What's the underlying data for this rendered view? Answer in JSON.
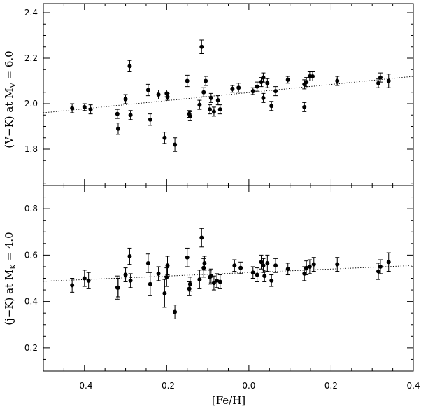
{
  "chart_data": [
    {
      "type": "scatter",
      "panel": "top",
      "title": "",
      "xlabel": "",
      "ylabel": {
        "main": "(V−K) at M",
        "sub": "V",
        "suffix": " = 6.0"
      },
      "xlim": [
        -0.5,
        0.4
      ],
      "ylim": [
        1.64,
        2.44
      ],
      "yticks": [
        1.8,
        2.0,
        2.2,
        2.4
      ],
      "ytick_labels": [
        "1.8",
        "2.0",
        "2.2",
        "2.4"
      ],
      "grid": false,
      "fit_line": {
        "x": [
          -0.5,
          0.4
        ],
        "y": [
          1.96,
          2.12
        ],
        "style": "dotted"
      },
      "points": [
        {
          "x": -0.43,
          "y": 1.98,
          "err": 0.02
        },
        {
          "x": -0.4,
          "y": 1.985,
          "err": 0.015
        },
        {
          "x": -0.385,
          "y": 1.975,
          "err": 0.02
        },
        {
          "x": -0.32,
          "y": 1.955,
          "err": 0.02
        },
        {
          "x": -0.318,
          "y": 1.89,
          "err": 0.025
        },
        {
          "x": -0.3,
          "y": 2.02,
          "err": 0.02
        },
        {
          "x": -0.29,
          "y": 2.165,
          "err": 0.025
        },
        {
          "x": -0.288,
          "y": 1.95,
          "err": 0.02
        },
        {
          "x": -0.245,
          "y": 2.06,
          "err": 0.025
        },
        {
          "x": -0.24,
          "y": 1.93,
          "err": 0.025
        },
        {
          "x": -0.22,
          "y": 2.04,
          "err": 0.02
        },
        {
          "x": -0.205,
          "y": 1.85,
          "err": 0.025
        },
        {
          "x": -0.2,
          "y": 2.045,
          "err": 0.015
        },
        {
          "x": -0.198,
          "y": 2.03,
          "err": 0.015
        },
        {
          "x": -0.18,
          "y": 1.82,
          "err": 0.03
        },
        {
          "x": -0.15,
          "y": 2.1,
          "err": 0.025
        },
        {
          "x": -0.145,
          "y": 1.955,
          "err": 0.015
        },
        {
          "x": -0.143,
          "y": 1.945,
          "err": 0.02
        },
        {
          "x": -0.12,
          "y": 1.995,
          "err": 0.02
        },
        {
          "x": -0.115,
          "y": 2.25,
          "err": 0.03
        },
        {
          "x": -0.11,
          "y": 2.05,
          "err": 0.02
        },
        {
          "x": -0.105,
          "y": 2.1,
          "err": 0.02
        },
        {
          "x": -0.095,
          "y": 1.975,
          "err": 0.02
        },
        {
          "x": -0.092,
          "y": 2.025,
          "err": 0.02
        },
        {
          "x": -0.085,
          "y": 1.965,
          "err": 0.02
        },
        {
          "x": -0.075,
          "y": 2.015,
          "err": 0.02
        },
        {
          "x": -0.07,
          "y": 1.975,
          "err": 0.02
        },
        {
          "x": -0.04,
          "y": 2.065,
          "err": 0.015
        },
        {
          "x": -0.025,
          "y": 2.07,
          "err": 0.02
        },
        {
          "x": 0.01,
          "y": 2.055,
          "err": 0.015
        },
        {
          "x": 0.02,
          "y": 2.075,
          "err": 0.02
        },
        {
          "x": 0.03,
          "y": 2.095,
          "err": 0.02
        },
        {
          "x": 0.035,
          "y": 2.025,
          "err": 0.02
        },
        {
          "x": 0.035,
          "y": 2.115,
          "err": 0.02
        },
        {
          "x": 0.045,
          "y": 2.09,
          "err": 0.02
        },
        {
          "x": 0.055,
          "y": 1.99,
          "err": 0.02
        },
        {
          "x": 0.065,
          "y": 2.055,
          "err": 0.02
        },
        {
          "x": 0.095,
          "y": 2.105,
          "err": 0.015
        },
        {
          "x": 0.135,
          "y": 2.085,
          "err": 0.02
        },
        {
          "x": 0.14,
          "y": 2.095,
          "err": 0.02
        },
        {
          "x": 0.148,
          "y": 2.12,
          "err": 0.02
        },
        {
          "x": 0.135,
          "y": 1.985,
          "err": 0.02
        },
        {
          "x": 0.155,
          "y": 2.12,
          "err": 0.02
        },
        {
          "x": 0.215,
          "y": 2.1,
          "err": 0.02
        },
        {
          "x": 0.315,
          "y": 2.09,
          "err": 0.02
        },
        {
          "x": 0.32,
          "y": 2.115,
          "err": 0.02
        },
        {
          "x": 0.34,
          "y": 2.1,
          "err": 0.03
        }
      ]
    },
    {
      "type": "scatter",
      "panel": "bottom",
      "title": "",
      "xlabel": "[Fe/H]",
      "ylabel": {
        "main": "(j−K) at M",
        "sub": "K",
        "suffix": " = 4.0"
      },
      "xlim": [
        -0.5,
        0.4
      ],
      "ylim": [
        0.1,
        0.9
      ],
      "xticks": [
        -0.4,
        -0.2,
        0.0,
        0.2,
        0.4
      ],
      "xtick_labels": [
        "-0.4",
        "-0.2",
        "0.0",
        "0.2",
        "0.4"
      ],
      "yticks": [
        0.2,
        0.4,
        0.6,
        0.8
      ],
      "ytick_labels": [
        "0.2",
        "0.4",
        "0.6",
        "0.8"
      ],
      "grid": false,
      "fit_line": {
        "x": [
          -0.5,
          0.4
        ],
        "y": [
          0.487,
          0.555
        ],
        "style": "dotted"
      },
      "points": [
        {
          "x": -0.43,
          "y": 0.47,
          "err": 0.03
        },
        {
          "x": -0.4,
          "y": 0.5,
          "err": 0.035
        },
        {
          "x": -0.39,
          "y": 0.49,
          "err": 0.035
        },
        {
          "x": -0.32,
          "y": 0.46,
          "err": 0.05
        },
        {
          "x": -0.318,
          "y": 0.46,
          "err": 0.04
        },
        {
          "x": -0.3,
          "y": 0.515,
          "err": 0.03
        },
        {
          "x": -0.29,
          "y": 0.595,
          "err": 0.035
        },
        {
          "x": -0.288,
          "y": 0.49,
          "err": 0.03
        },
        {
          "x": -0.245,
          "y": 0.565,
          "err": 0.04
        },
        {
          "x": -0.24,
          "y": 0.475,
          "err": 0.05
        },
        {
          "x": -0.22,
          "y": 0.52,
          "err": 0.03
        },
        {
          "x": -0.205,
          "y": 0.435,
          "err": 0.06
        },
        {
          "x": -0.2,
          "y": 0.505,
          "err": 0.04
        },
        {
          "x": -0.198,
          "y": 0.555,
          "err": 0.04
        },
        {
          "x": -0.18,
          "y": 0.355,
          "err": 0.03
        },
        {
          "x": -0.15,
          "y": 0.59,
          "err": 0.04
        },
        {
          "x": -0.145,
          "y": 0.455,
          "err": 0.03
        },
        {
          "x": -0.143,
          "y": 0.475,
          "err": 0.03
        },
        {
          "x": -0.12,
          "y": 0.495,
          "err": 0.04
        },
        {
          "x": -0.115,
          "y": 0.675,
          "err": 0.04
        },
        {
          "x": -0.11,
          "y": 0.545,
          "err": 0.04
        },
        {
          "x": -0.108,
          "y": 0.565,
          "err": 0.03
        },
        {
          "x": -0.095,
          "y": 0.505,
          "err": 0.03
        },
        {
          "x": -0.092,
          "y": 0.51,
          "err": 0.03
        },
        {
          "x": -0.085,
          "y": 0.48,
          "err": 0.03
        },
        {
          "x": -0.078,
          "y": 0.49,
          "err": 0.03
        },
        {
          "x": -0.07,
          "y": 0.485,
          "err": 0.03
        },
        {
          "x": -0.035,
          "y": 0.555,
          "err": 0.025
        },
        {
          "x": -0.02,
          "y": 0.545,
          "err": 0.025
        },
        {
          "x": 0.01,
          "y": 0.525,
          "err": 0.025
        },
        {
          "x": 0.02,
          "y": 0.515,
          "err": 0.03
        },
        {
          "x": 0.03,
          "y": 0.57,
          "err": 0.03
        },
        {
          "x": 0.035,
          "y": 0.555,
          "err": 0.03
        },
        {
          "x": 0.038,
          "y": 0.51,
          "err": 0.025
        },
        {
          "x": 0.045,
          "y": 0.565,
          "err": 0.035
        },
        {
          "x": 0.055,
          "y": 0.49,
          "err": 0.025
        },
        {
          "x": 0.065,
          "y": 0.555,
          "err": 0.03
        },
        {
          "x": 0.095,
          "y": 0.54,
          "err": 0.025
        },
        {
          "x": 0.135,
          "y": 0.52,
          "err": 0.03
        },
        {
          "x": 0.14,
          "y": 0.545,
          "err": 0.03
        },
        {
          "x": 0.148,
          "y": 0.55,
          "err": 0.03
        },
        {
          "x": 0.158,
          "y": 0.56,
          "err": 0.03
        },
        {
          "x": 0.215,
          "y": 0.56,
          "err": 0.03
        },
        {
          "x": 0.315,
          "y": 0.53,
          "err": 0.035
        },
        {
          "x": 0.32,
          "y": 0.55,
          "err": 0.03
        },
        {
          "x": 0.34,
          "y": 0.57,
          "err": 0.04
        }
      ]
    }
  ]
}
